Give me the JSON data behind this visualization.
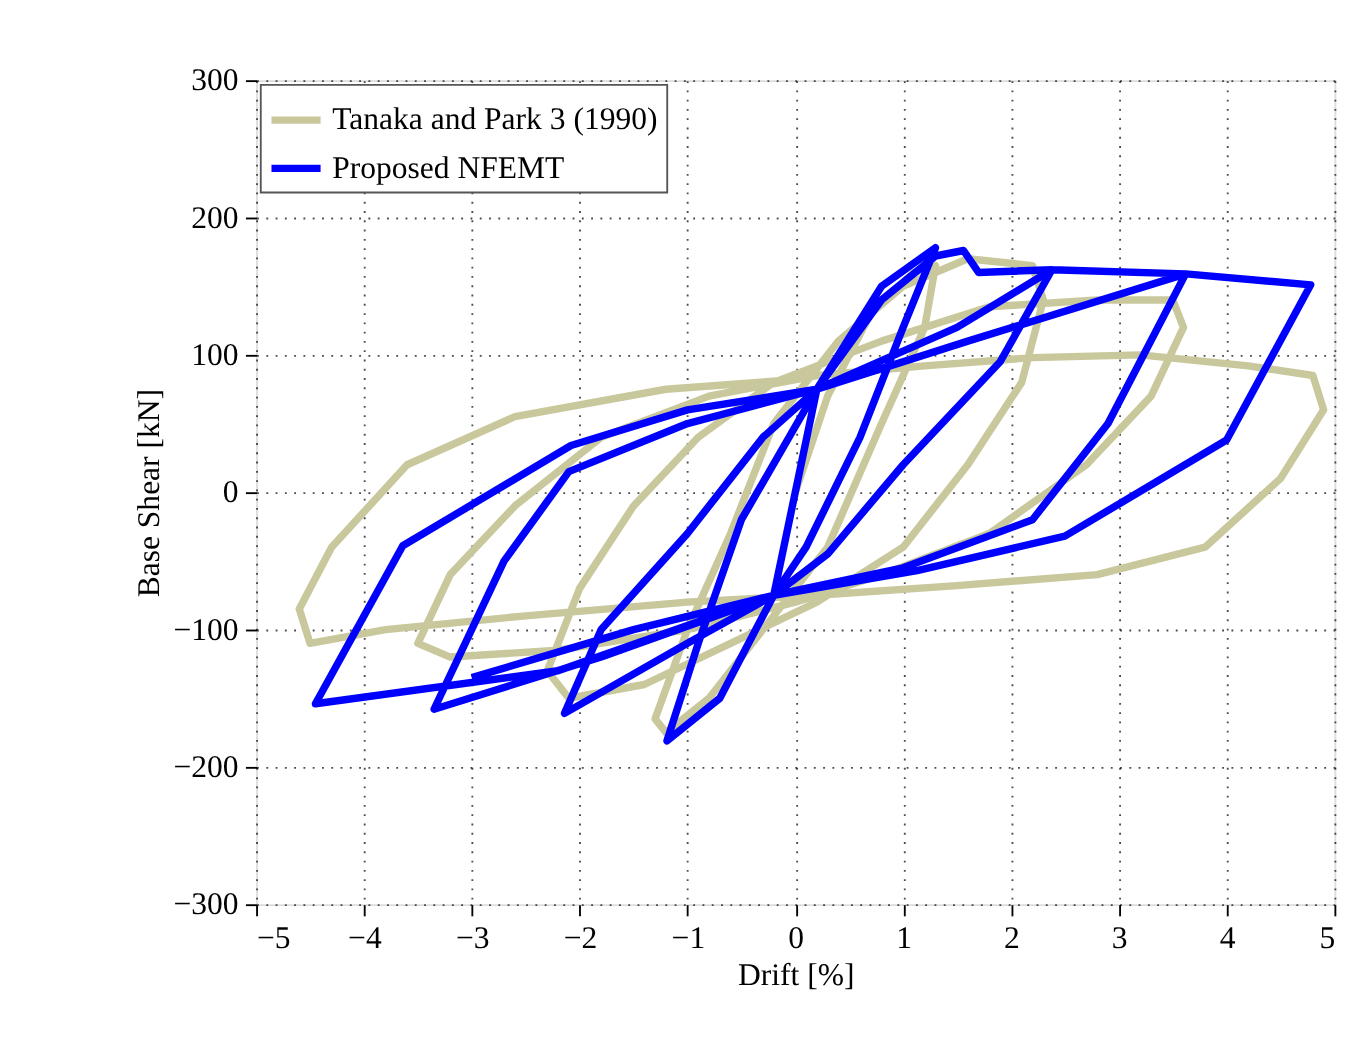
{
  "chart_data": {
    "type": "line",
    "xlabel": "Drift [%]",
    "ylabel": "Base Shear [kN]",
    "xlim": [
      -5,
      5
    ],
    "ylim": [
      -300,
      300
    ],
    "xticks": [
      -5,
      -4,
      -3,
      -2,
      -1,
      0,
      1,
      2,
      3,
      4,
      5
    ],
    "yticks": [
      -300,
      -200,
      -100,
      0,
      100,
      200,
      300
    ],
    "grid": true,
    "legend": "top left",
    "marker": "none",
    "line_style": "solid",
    "series": [
      {
        "name": "Tanaka and Park 3 (1990)",
        "color": "#c9c89c",
        "x": [
          0,
          0.3,
          0.7,
          1.1,
          1.3,
          1.2,
          0.8,
          0.3,
          -0.3,
          -0.8,
          -1.2,
          -1.3,
          -1.0,
          -0.6,
          -0.2,
          0.4,
          1.0,
          1.6,
          2.2,
          2.3,
          2.1,
          1.6,
          1.0,
          0.2,
          -0.6,
          -1.4,
          -2.1,
          -2.3,
          -2.0,
          -1.5,
          -0.9,
          -0.2,
          0.8,
          1.8,
          2.8,
          3.5,
          3.6,
          3.3,
          2.7,
          1.8,
          0.8,
          0,
          -1,
          -2.2,
          -3.2,
          -3.5,
          -3.2,
          -2.6,
          -1.8,
          -0.8,
          0.2,
          1.2,
          2.2,
          3.2,
          4.2,
          4.8,
          4.9,
          4.5,
          3.8,
          2.8,
          1.5,
          0.2,
          -1,
          -2.5,
          -3.8,
          -4.5,
          -4.6,
          -4.3,
          -3.6,
          -2.6,
          -1.2,
          0
        ],
        "values": [
          0,
          70,
          130,
          160,
          165,
          120,
          50,
          -40,
          -100,
          -150,
          -175,
          -165,
          -100,
          -30,
          50,
          110,
          150,
          170,
          165,
          140,
          80,
          20,
          -40,
          -80,
          -110,
          -140,
          -150,
          -130,
          -70,
          -10,
          40,
          80,
          110,
          135,
          140,
          140,
          120,
          70,
          20,
          -30,
          -60,
          -80,
          -100,
          -115,
          -120,
          -110,
          -60,
          -10,
          40,
          70,
          85,
          92,
          98,
          100,
          92,
          85,
          60,
          10,
          -40,
          -60,
          -68,
          -75,
          -80,
          -90,
          -100,
          -110,
          -85,
          -40,
          20,
          55,
          75,
          82
        ]
      },
      {
        "name": "Proposed NFEMT",
        "color": "#0000ff",
        "x": [
          0,
          0.2,
          0.8,
          1.3,
          1.0,
          0.6,
          0.1,
          -0.2,
          -0.7,
          -1.19,
          -0.9,
          -0.5,
          0.2,
          0.8,
          1.3,
          1.56,
          1.7,
          2.38,
          1.9,
          1.0,
          0.3,
          -0.2,
          -1.0,
          -2.14,
          -1.8,
          -1.0,
          -0.3,
          0.2,
          1.5,
          2.38,
          3.62,
          2.9,
          2.2,
          1.0,
          -0.2,
          -1.8,
          -3.35,
          -2.7,
          -2.1,
          -1.0,
          0.2,
          1.6,
          3.62,
          4.78,
          4.0,
          2.5,
          1.13,
          -0.2,
          -2.2,
          -4.45,
          -3.64,
          -2.08,
          -1.0,
          0.2,
          -0.2,
          -1.5,
          -3.0
        ],
        "values": [
          0,
          75,
          150,
          178,
          120,
          40,
          -40,
          -75,
          -150,
          -181,
          -110,
          -20,
          75,
          140,
          172,
          176,
          160,
          162,
          95,
          20,
          -45,
          -75,
          -110,
          -161,
          -100,
          -30,
          40,
          75,
          120,
          162,
          159,
          50,
          -20,
          -55,
          -75,
          -120,
          -158,
          -50,
          15,
          50,
          75,
          110,
          159,
          151,
          38,
          -32,
          -57,
          -75,
          -130,
          -154,
          -39,
          34,
          60,
          75,
          -75,
          -100,
          -135
        ]
      }
    ]
  }
}
